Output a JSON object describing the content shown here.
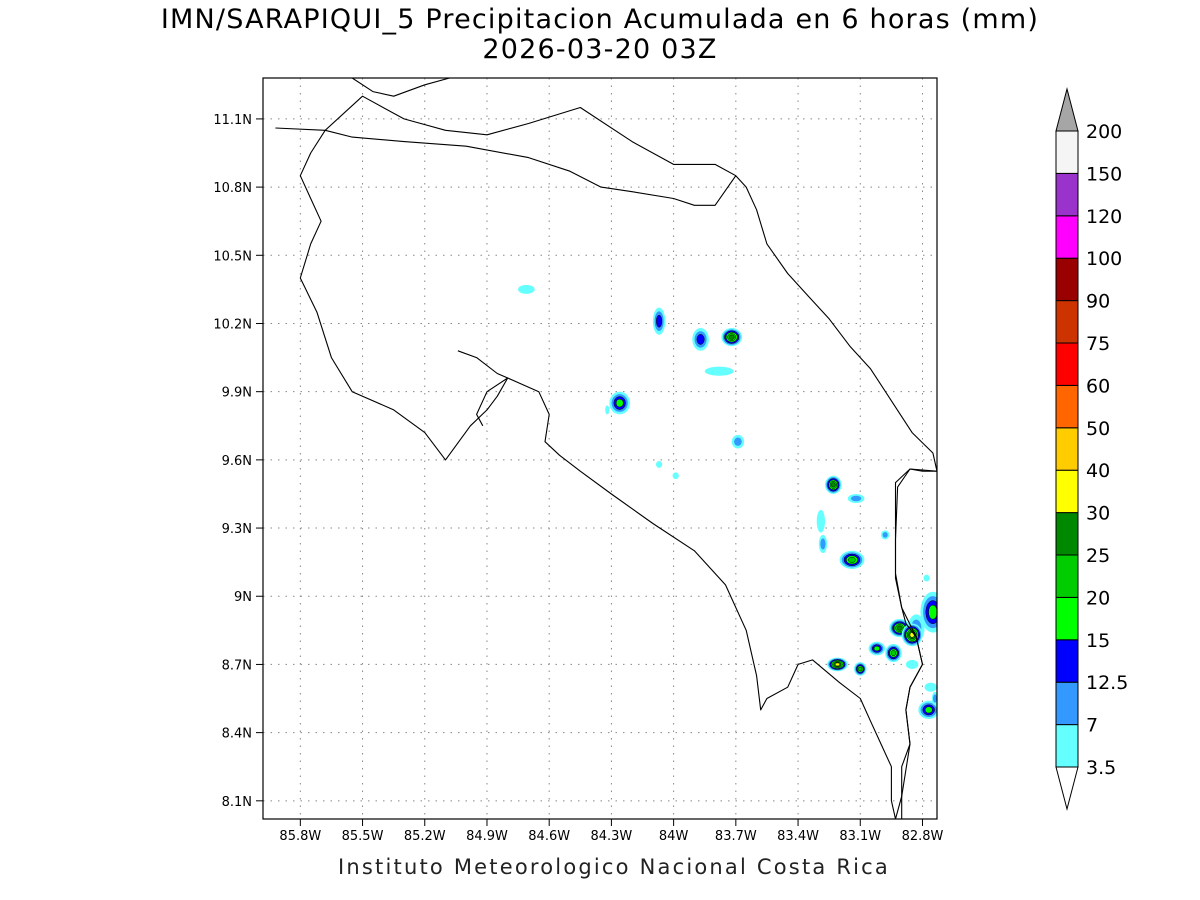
{
  "title": {
    "line1": "IMN/SARAPIQUI_5 Precipitacion Acumulada en 6 horas (mm)",
    "line2": "2026-03-20 03Z"
  },
  "credit": "Instituto Meteorologico Nacional Costa Rica",
  "map": {
    "lon_range": [
      -85.98,
      -82.73
    ],
    "lat_range": [
      8.02,
      11.28
    ],
    "x_ticks": [
      {
        "value": -85.8,
        "label": "85.8W"
      },
      {
        "value": -85.5,
        "label": "85.5W"
      },
      {
        "value": -85.2,
        "label": "85.2W"
      },
      {
        "value": -84.9,
        "label": "84.9W"
      },
      {
        "value": -84.6,
        "label": "84.6W"
      },
      {
        "value": -84.3,
        "label": "84.3W"
      },
      {
        "value": -84.0,
        "label": "84W"
      },
      {
        "value": -83.7,
        "label": "83.7W"
      },
      {
        "value": -83.4,
        "label": "83.4W"
      },
      {
        "value": -83.1,
        "label": "83.1W"
      },
      {
        "value": -82.8,
        "label": "82.8W"
      }
    ],
    "y_ticks": [
      {
        "value": 11.1,
        "label": "11.1N"
      },
      {
        "value": 10.8,
        "label": "10.8N"
      },
      {
        "value": 10.5,
        "label": "10.5N"
      },
      {
        "value": 10.2,
        "label": "10.2N"
      },
      {
        "value": 9.9,
        "label": "9.9N"
      },
      {
        "value": 9.6,
        "label": "9.6N"
      },
      {
        "value": 9.3,
        "label": "9.3N"
      },
      {
        "value": 9.0,
        "label": "9N"
      },
      {
        "value": 8.7,
        "label": "8.7N"
      },
      {
        "value": 8.4,
        "label": "8.4N"
      },
      {
        "value": 8.1,
        "label": "8.1N"
      }
    ],
    "grid": "dotted",
    "coastline_color": "#000000",
    "outline": [
      [
        -85.92,
        11.06
      ],
      [
        -85.68,
        11.05
      ],
      [
        -85.55,
        11.02
      ],
      [
        -85.3,
        11.0
      ],
      [
        -85.0,
        10.98
      ],
      [
        -84.7,
        10.93
      ],
      [
        -84.5,
        10.87
      ],
      [
        -84.35,
        10.8
      ],
      [
        -84.2,
        10.78
      ],
      [
        -84.0,
        10.75
      ],
      [
        -83.9,
        10.72
      ],
      [
        -83.8,
        10.72
      ],
      [
        -83.7,
        10.85
      ],
      [
        -83.65,
        10.8
      ],
      [
        -83.6,
        10.7
      ],
      [
        -83.55,
        10.55
      ],
      [
        -83.45,
        10.42
      ],
      [
        -83.35,
        10.32
      ],
      [
        -83.25,
        10.22
      ],
      [
        -83.15,
        10.1
      ],
      [
        -83.05,
        10.0
      ],
      [
        -82.95,
        9.86
      ],
      [
        -82.85,
        9.72
      ],
      [
        -82.75,
        9.63
      ],
      [
        -82.73,
        9.55
      ],
      [
        -82.8,
        9.55
      ],
      [
        -82.86,
        9.56
      ],
      [
        -82.92,
        9.48
      ],
      [
        -82.93,
        9.25
      ],
      [
        -82.93,
        9.08
      ],
      [
        -82.9,
        8.95
      ],
      [
        -82.88,
        8.88
      ],
      [
        -82.83,
        8.82
      ],
      [
        -82.8,
        8.7
      ],
      [
        -82.86,
        8.6
      ],
      [
        -82.88,
        8.5
      ],
      [
        -82.86,
        8.35
      ],
      [
        -82.9,
        8.25
      ],
      [
        -82.9,
        8.12
      ],
      [
        -82.93,
        8.02
      ],
      [
        -82.95,
        8.1
      ],
      [
        -82.95,
        8.25
      ],
      [
        -83.0,
        8.35
      ],
      [
        -83.05,
        8.45
      ],
      [
        -83.1,
        8.55
      ],
      [
        -83.2,
        8.62
      ],
      [
        -83.33,
        8.72
      ],
      [
        -83.4,
        8.7
      ],
      [
        -83.45,
        8.6
      ],
      [
        -83.55,
        8.55
      ],
      [
        -83.58,
        8.5
      ],
      [
        -83.6,
        8.65
      ],
      [
        -83.65,
        8.85
      ],
      [
        -83.75,
        9.05
      ],
      [
        -83.9,
        9.2
      ],
      [
        -84.1,
        9.32
      ],
      [
        -84.3,
        9.45
      ],
      [
        -84.45,
        9.55
      ],
      [
        -84.55,
        9.62
      ],
      [
        -84.62,
        9.68
      ],
      [
        -84.6,
        9.8
      ],
      [
        -84.65,
        9.9
      ],
      [
        -84.8,
        9.96
      ],
      [
        -84.85,
        9.88
      ],
      [
        -84.9,
        9.82
      ],
      [
        -84.98,
        9.75
      ],
      [
        -85.1,
        9.6
      ],
      [
        -85.2,
        9.72
      ],
      [
        -85.35,
        9.82
      ],
      [
        -85.55,
        9.9
      ],
      [
        -85.65,
        10.05
      ],
      [
        -85.72,
        10.25
      ],
      [
        -85.8,
        10.4
      ],
      [
        -85.75,
        10.55
      ],
      [
        -85.7,
        10.65
      ],
      [
        -85.75,
        10.75
      ],
      [
        -85.8,
        10.85
      ],
      [
        -85.75,
        10.95
      ],
      [
        -85.68,
        11.05
      ]
    ],
    "gulf_nicoya_outline": [
      [
        -85.04,
        10.08
      ],
      [
        -84.95,
        10.05
      ],
      [
        -84.85,
        9.98
      ],
      [
        -84.8,
        9.96
      ],
      [
        -84.9,
        9.9
      ],
      [
        -84.95,
        9.8
      ],
      [
        -84.92,
        9.75
      ]
    ],
    "panama_border": [
      [
        -82.73,
        9.55
      ],
      [
        -82.86,
        9.56
      ],
      [
        -82.93,
        9.5
      ],
      [
        -82.93,
        9.1
      ],
      [
        -82.9,
        8.95
      ],
      [
        -82.83,
        8.82
      ],
      [
        -82.8,
        8.7
      ],
      [
        -82.86,
        8.6
      ],
      [
        -82.88,
        8.5
      ],
      [
        -82.86,
        8.35
      ],
      [
        -82.9,
        8.12
      ],
      [
        -82.9,
        8.02
      ]
    ],
    "nicaragua_border": [
      [
        -85.68,
        11.05
      ],
      [
        -85.5,
        11.2
      ],
      [
        -85.3,
        11.1
      ],
      [
        -85.1,
        11.05
      ],
      [
        -84.9,
        11.03
      ],
      [
        -84.7,
        11.08
      ],
      [
        -84.45,
        11.15
      ],
      [
        -84.2,
        11.0
      ],
      [
        -84.0,
        10.9
      ],
      [
        -83.8,
        10.9
      ],
      [
        -83.7,
        10.85
      ]
    ],
    "lake_outline": [
      [
        -85.55,
        11.28
      ],
      [
        -85.45,
        11.22
      ],
      [
        -85.35,
        11.2
      ],
      [
        -85.2,
        11.25
      ],
      [
        -85.08,
        11.28
      ]
    ]
  },
  "precip_cells": [
    {
      "lon": -84.71,
      "lat": 10.35,
      "rx": 0.04,
      "ry": 0.02,
      "level": 0
    },
    {
      "lon": -84.07,
      "lat": 10.21,
      "rx": 0.03,
      "ry": 0.06,
      "level": 2
    },
    {
      "lon": -83.87,
      "lat": 10.13,
      "rx": 0.04,
      "ry": 0.05,
      "level": 2
    },
    {
      "lon": -83.72,
      "lat": 10.14,
      "rx": 0.05,
      "ry": 0.04,
      "level": 5
    },
    {
      "lon": -83.78,
      "lat": 9.99,
      "rx": 0.07,
      "ry": 0.02,
      "level": 0
    },
    {
      "lon": -84.26,
      "lat": 9.85,
      "rx": 0.05,
      "ry": 0.05,
      "level": 3
    },
    {
      "lon": -83.69,
      "lat": 9.68,
      "rx": 0.03,
      "ry": 0.03,
      "level": 1
    },
    {
      "lon": -84.07,
      "lat": 9.58,
      "rx": 0.015,
      "ry": 0.015,
      "level": 0
    },
    {
      "lon": -83.99,
      "lat": 9.53,
      "rx": 0.015,
      "ry": 0.015,
      "level": 0
    },
    {
      "lon": -83.23,
      "lat": 9.49,
      "rx": 0.04,
      "ry": 0.04,
      "level": 5
    },
    {
      "lon": -83.12,
      "lat": 9.43,
      "rx": 0.04,
      "ry": 0.02,
      "level": 1
    },
    {
      "lon": -83.29,
      "lat": 9.33,
      "rx": 0.02,
      "ry": 0.05,
      "level": 0
    },
    {
      "lon": -83.28,
      "lat": 9.23,
      "rx": 0.02,
      "ry": 0.04,
      "level": 1
    },
    {
      "lon": -83.14,
      "lat": 9.16,
      "rx": 0.06,
      "ry": 0.04,
      "level": 4
    },
    {
      "lon": -82.98,
      "lat": 9.27,
      "rx": 0.02,
      "ry": 0.02,
      "level": 1
    },
    {
      "lon": -82.75,
      "lat": 8.93,
      "rx": 0.06,
      "ry": 0.09,
      "level": 3
    },
    {
      "lon": -82.83,
      "lat": 8.86,
      "rx": 0.04,
      "ry": 0.06,
      "level": 1
    },
    {
      "lon": -82.91,
      "lat": 8.86,
      "rx": 0.05,
      "ry": 0.04,
      "level": 5
    },
    {
      "lon": -82.85,
      "lat": 8.83,
      "rx": 0.05,
      "ry": 0.05,
      "level": 6
    },
    {
      "lon": -82.94,
      "lat": 8.75,
      "rx": 0.04,
      "ry": 0.04,
      "level": 4
    },
    {
      "lon": -83.02,
      "lat": 8.77,
      "rx": 0.04,
      "ry": 0.03,
      "level": 3
    },
    {
      "lon": -83.21,
      "lat": 8.7,
      "rx": 0.05,
      "ry": 0.03,
      "level": 6
    },
    {
      "lon": -83.1,
      "lat": 8.68,
      "rx": 0.03,
      "ry": 0.03,
      "level": 4
    },
    {
      "lon": -82.77,
      "lat": 8.5,
      "rx": 0.05,
      "ry": 0.04,
      "level": 3
    },
    {
      "lon": -82.76,
      "lat": 8.6,
      "rx": 0.03,
      "ry": 0.02,
      "level": 0
    },
    {
      "lon": -82.74,
      "lat": 8.55,
      "rx": 0.015,
      "ry": 0.03,
      "level": 1
    },
    {
      "lon": -84.32,
      "lat": 9.82,
      "rx": 0.01,
      "ry": 0.02,
      "level": 0
    },
    {
      "lon": -82.85,
      "lat": 8.7,
      "rx": 0.03,
      "ry": 0.02,
      "level": 0
    },
    {
      "lon": -82.78,
      "lat": 9.08,
      "rx": 0.015,
      "ry": 0.015,
      "level": 0
    }
  ],
  "colorbar": {
    "levels": [
      "3.5",
      "7",
      "12.5",
      "15",
      "20",
      "25",
      "30",
      "40",
      "50",
      "60",
      "75",
      "90",
      "100",
      "120",
      "150",
      "200"
    ],
    "colors": [
      "#66ffff",
      "#3399ff",
      "#0000ff",
      "#00ff00",
      "#00cc00",
      "#008800",
      "#ffff00",
      "#ffcc00",
      "#ff6600",
      "#ff0000",
      "#cc3300",
      "#990000",
      "#ff00ff",
      "#9933cc",
      "#f5f5f5"
    ],
    "under_color": "#ffffff",
    "over_color": "#a6a6a6"
  }
}
